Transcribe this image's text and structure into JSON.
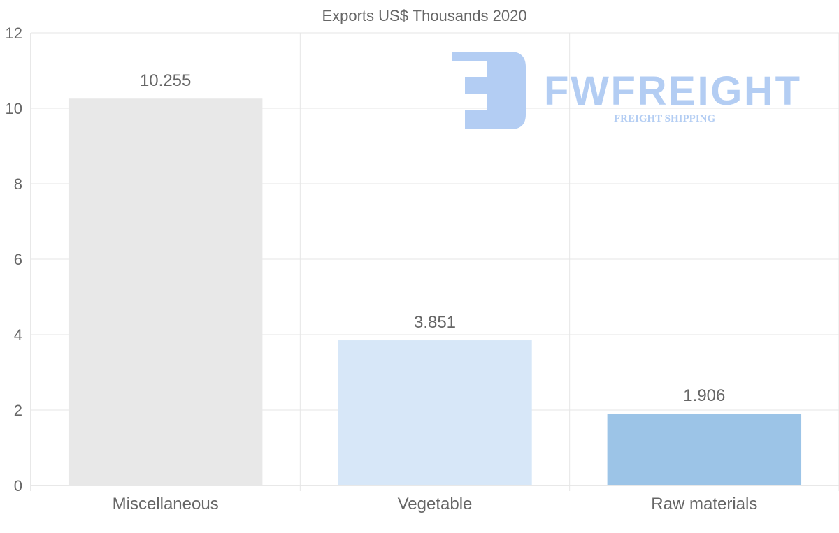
{
  "chart_data": {
    "type": "bar",
    "title": "Exports US$ Thousands 2020",
    "categories": [
      "Miscellaneous",
      "Vegetable",
      "Raw materials"
    ],
    "values": [
      10.255,
      3.851,
      1.906
    ],
    "value_labels": [
      "10.255",
      "3.851",
      "1.906"
    ],
    "colors": [
      "#e8e8e8",
      "#d7e7f8",
      "#9cc4e7"
    ],
    "ylim": [
      0,
      12
    ],
    "yticks": [
      0,
      2,
      4,
      6,
      8,
      10,
      12
    ],
    "grid": true,
    "xlabel": "",
    "ylabel": ""
  },
  "watermark": {
    "brand": "FWFREIGHT",
    "tagline": "FREIGHT SHIPPING",
    "color": "#b3cdf3"
  }
}
